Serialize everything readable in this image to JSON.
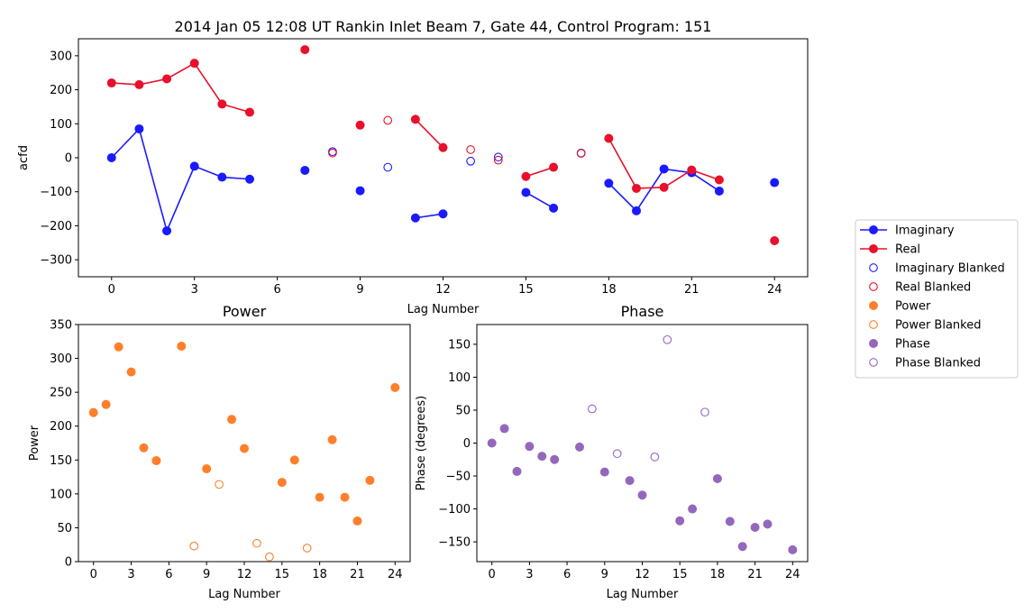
{
  "chart_data": [
    {
      "type": "line",
      "title": "2014 Jan 05 12:08 UT Rankin Inlet Beam 7, Gate 44, Control Program: 151",
      "xlabel": "Lag Number",
      "ylabel": "acfd",
      "xlim": [
        -1.2,
        25.2
      ],
      "ylim": [
        -350,
        350
      ],
      "xticks": [
        0,
        3,
        6,
        9,
        12,
        15,
        18,
        21,
        24
      ],
      "yticks": [
        -300,
        -200,
        -100,
        0,
        100,
        200,
        300
      ],
      "grid": false,
      "series": [
        {
          "name": "Imaginary",
          "color": "#1a1aff",
          "marker": "filled",
          "connected": true,
          "points": [
            [
              0,
              0
            ],
            [
              1,
              85
            ],
            [
              2,
              -215
            ],
            [
              3,
              -25
            ],
            [
              4,
              -57
            ],
            [
              5,
              -63
            ],
            [
              7,
              -37
            ],
            [
              9,
              -97
            ],
            [
              11,
              -177
            ],
            [
              12,
              -165
            ],
            [
              15,
              -102
            ],
            [
              16,
              -148
            ],
            [
              18,
              -75
            ],
            [
              19,
              -156
            ],
            [
              20,
              -33
            ],
            [
              21,
              -44
            ],
            [
              22,
              -98
            ],
            [
              24,
              -73
            ]
          ]
        },
        {
          "name": "Real",
          "color": "#e8102a",
          "marker": "filled",
          "connected": true,
          "points": [
            [
              0,
              220
            ],
            [
              1,
              215
            ],
            [
              2,
              232
            ],
            [
              3,
              278
            ],
            [
              4,
              158
            ],
            [
              5,
              134
            ],
            [
              7,
              318
            ],
            [
              9,
              96
            ],
            [
              11,
              113
            ],
            [
              12,
              30
            ],
            [
              15,
              -55
            ],
            [
              16,
              -28
            ],
            [
              18,
              57
            ],
            [
              19,
              -90
            ],
            [
              20,
              -87
            ],
            [
              21,
              -36
            ],
            [
              22,
              -65
            ],
            [
              24,
              -244
            ]
          ]
        },
        {
          "name": "Imaginary Blanked",
          "color": "#1a1aff",
          "marker": "hollow",
          "connected": false,
          "points": [
            [
              8,
              18
            ],
            [
              10,
              -28
            ],
            [
              13,
              -10
            ],
            [
              14,
              2
            ],
            [
              17,
              14
            ]
          ]
        },
        {
          "name": "Real Blanked",
          "color": "#e8102a",
          "marker": "hollow",
          "connected": false,
          "points": [
            [
              8,
              14
            ],
            [
              10,
              110
            ],
            [
              13,
              24
            ],
            [
              14,
              -7
            ],
            [
              17,
              13
            ]
          ]
        }
      ]
    },
    {
      "type": "scatter",
      "title": "Power",
      "xlabel": "Lag Number",
      "ylabel": "Power",
      "xlim": [
        -1.2,
        25.2
      ],
      "ylim": [
        0,
        350
      ],
      "xticks": [
        0,
        3,
        6,
        9,
        12,
        15,
        18,
        21,
        24
      ],
      "yticks": [
        0,
        50,
        100,
        150,
        200,
        250,
        300,
        350
      ],
      "grid": false,
      "series": [
        {
          "name": "Power",
          "color": "#ff7f2a",
          "marker": "filled",
          "points": [
            [
              0,
              220
            ],
            [
              1,
              232
            ],
            [
              2,
              317
            ],
            [
              3,
              280
            ],
            [
              4,
              168
            ],
            [
              5,
              149
            ],
            [
              7,
              318
            ],
            [
              9,
              137
            ],
            [
              11,
              210
            ],
            [
              12,
              167
            ],
            [
              15,
              117
            ],
            [
              16,
              150
            ],
            [
              18,
              95
            ],
            [
              19,
              180
            ],
            [
              20,
              95
            ],
            [
              21,
              60
            ],
            [
              22,
              120
            ],
            [
              24,
              257
            ]
          ]
        },
        {
          "name": "Power Blanked",
          "color": "#ff7f2a",
          "marker": "hollow",
          "points": [
            [
              8,
              23
            ],
            [
              10,
              114
            ],
            [
              13,
              27
            ],
            [
              14,
              7
            ],
            [
              17,
              20
            ]
          ]
        }
      ]
    },
    {
      "type": "scatter",
      "title": "Phase",
      "xlabel": "Lag Number",
      "ylabel": "Phase (degrees)",
      "xlim": [
        -1.2,
        25.2
      ],
      "ylim": [
        -180,
        180
      ],
      "xticks": [
        0,
        3,
        6,
        9,
        12,
        15,
        18,
        21,
        24
      ],
      "yticks": [
        -150,
        -100,
        -50,
        0,
        50,
        100,
        150
      ],
      "grid": false,
      "series": [
        {
          "name": "Phase",
          "color": "#9467bd",
          "marker": "filled",
          "points": [
            [
              0,
              0
            ],
            [
              1,
              22
            ],
            [
              2,
              -43
            ],
            [
              3,
              -5
            ],
            [
              4,
              -20
            ],
            [
              5,
              -25
            ],
            [
              7,
              -6
            ],
            [
              9,
              -44
            ],
            [
              11,
              -57
            ],
            [
              12,
              -79
            ],
            [
              15,
              -118
            ],
            [
              16,
              -100
            ],
            [
              18,
              -54
            ],
            [
              19,
              -119
            ],
            [
              20,
              -157
            ],
            [
              21,
              -128
            ],
            [
              22,
              -123
            ],
            [
              24,
              -162
            ]
          ]
        },
        {
          "name": "Phase Blanked",
          "color": "#9467bd",
          "marker": "hollow",
          "points": [
            [
              8,
              52
            ],
            [
              10,
              -16
            ],
            [
              13,
              -21
            ],
            [
              14,
              157
            ],
            [
              17,
              47
            ]
          ]
        }
      ]
    }
  ],
  "legend": {
    "position": "right",
    "entries": [
      {
        "label": "Imaginary",
        "color": "#1a1aff",
        "style": "line-filled"
      },
      {
        "label": "Real",
        "color": "#e8102a",
        "style": "line-filled"
      },
      {
        "label": "Imaginary Blanked",
        "color": "#1a1aff",
        "style": "hollow"
      },
      {
        "label": "Real Blanked",
        "color": "#e8102a",
        "style": "hollow"
      },
      {
        "label": "Power",
        "color": "#ff7f2a",
        "style": "filled"
      },
      {
        "label": "Power Blanked",
        "color": "#ff7f2a",
        "style": "hollow"
      },
      {
        "label": "Phase",
        "color": "#9467bd",
        "style": "filled"
      },
      {
        "label": "Phase Blanked",
        "color": "#9467bd",
        "style": "hollow"
      }
    ]
  }
}
